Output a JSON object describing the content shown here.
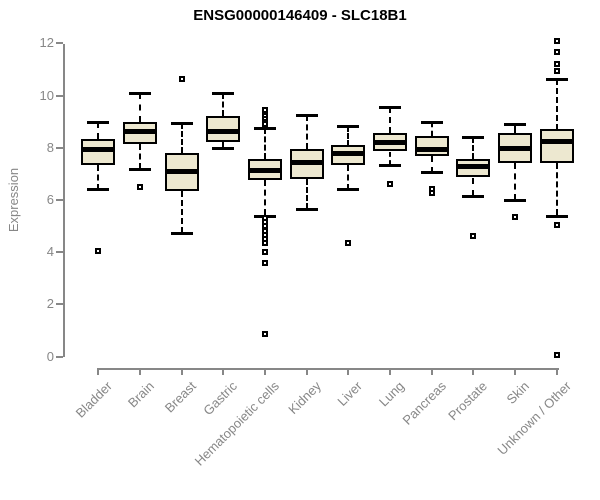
{
  "chart_data": {
    "type": "boxplot",
    "title": "ENSG00000146409 - SLC18B1",
    "ylabel": "Expression",
    "xlabel": "",
    "ylim": [
      0,
      12.4
    ],
    "yticks": [
      0,
      2,
      4,
      6,
      8,
      10,
      12
    ],
    "grid": false,
    "legend": "none",
    "categories": [
      "Bladder",
      "Brain",
      "Breast",
      "Gastric",
      "Hematopoietic cells",
      "Kidney",
      "Liver",
      "Lung",
      "Pancreas",
      "Prostate",
      "Skin",
      "Unknown / Other"
    ],
    "series": [
      {
        "name": "Bladder",
        "low": 6.4,
        "q1": 7.35,
        "median": 7.95,
        "q3": 8.35,
        "high": 9.0,
        "outliers": [
          4.05
        ]
      },
      {
        "name": "Brain",
        "low": 7.2,
        "q1": 8.15,
        "median": 8.65,
        "q3": 9.0,
        "high": 10.1,
        "outliers": [
          6.5
        ]
      },
      {
        "name": "Breast",
        "low": 4.75,
        "q1": 6.35,
        "median": 7.1,
        "q3": 7.8,
        "high": 8.95,
        "outliers": [
          10.65
        ]
      },
      {
        "name": "Gastric",
        "low": 8.0,
        "q1": 8.2,
        "median": 8.65,
        "q3": 9.2,
        "high": 10.1,
        "outliers": []
      },
      {
        "name": "Hematopoietic cells",
        "low": 5.4,
        "q1": 6.75,
        "median": 7.15,
        "q3": 7.55,
        "high": 8.75,
        "outliers": [
          9.45,
          9.3,
          9.2,
          9.1,
          9.0,
          8.9,
          5.3,
          5.15,
          5.0,
          4.8,
          4.65,
          4.5,
          4.35,
          4.0,
          3.6,
          0.85
        ]
      },
      {
        "name": "Kidney",
        "low": 5.65,
        "q1": 6.8,
        "median": 7.45,
        "q3": 7.95,
        "high": 9.25,
        "outliers": []
      },
      {
        "name": "Liver",
        "low": 6.4,
        "q1": 7.35,
        "median": 7.8,
        "q3": 8.1,
        "high": 8.85,
        "outliers": [
          4.35
        ]
      },
      {
        "name": "Lung",
        "low": 7.35,
        "q1": 7.85,
        "median": 8.2,
        "q3": 8.55,
        "high": 9.55,
        "outliers": [
          6.6
        ]
      },
      {
        "name": "Pancreas",
        "low": 7.05,
        "q1": 7.7,
        "median": 7.95,
        "q3": 8.45,
        "high": 9.0,
        "outliers": [
          6.4,
          6.25
        ]
      },
      {
        "name": "Prostate",
        "low": 6.15,
        "q1": 6.85,
        "median": 7.3,
        "q3": 7.55,
        "high": 8.4,
        "outliers": [
          4.6
        ]
      },
      {
        "name": "Skin",
        "low": 6.0,
        "q1": 7.4,
        "median": 8.0,
        "q3": 8.55,
        "high": 8.9,
        "outliers": [
          5.35
        ]
      },
      {
        "name": "Unknown / Other",
        "low": 5.4,
        "q1": 7.4,
        "median": 8.25,
        "q3": 8.7,
        "high": 10.65,
        "outliers": [
          12.1,
          11.65,
          11.2,
          10.95,
          5.05,
          0.05
        ]
      }
    ]
  },
  "colors": {
    "box_fill": "#EDE8D0",
    "box_border": "#000000",
    "median": "#000000",
    "whisker": "#000000",
    "outlier": "#000000",
    "axis": "#878787",
    "tick_label": "#878787",
    "title": "#000000",
    "background": "#FFFFFF"
  }
}
